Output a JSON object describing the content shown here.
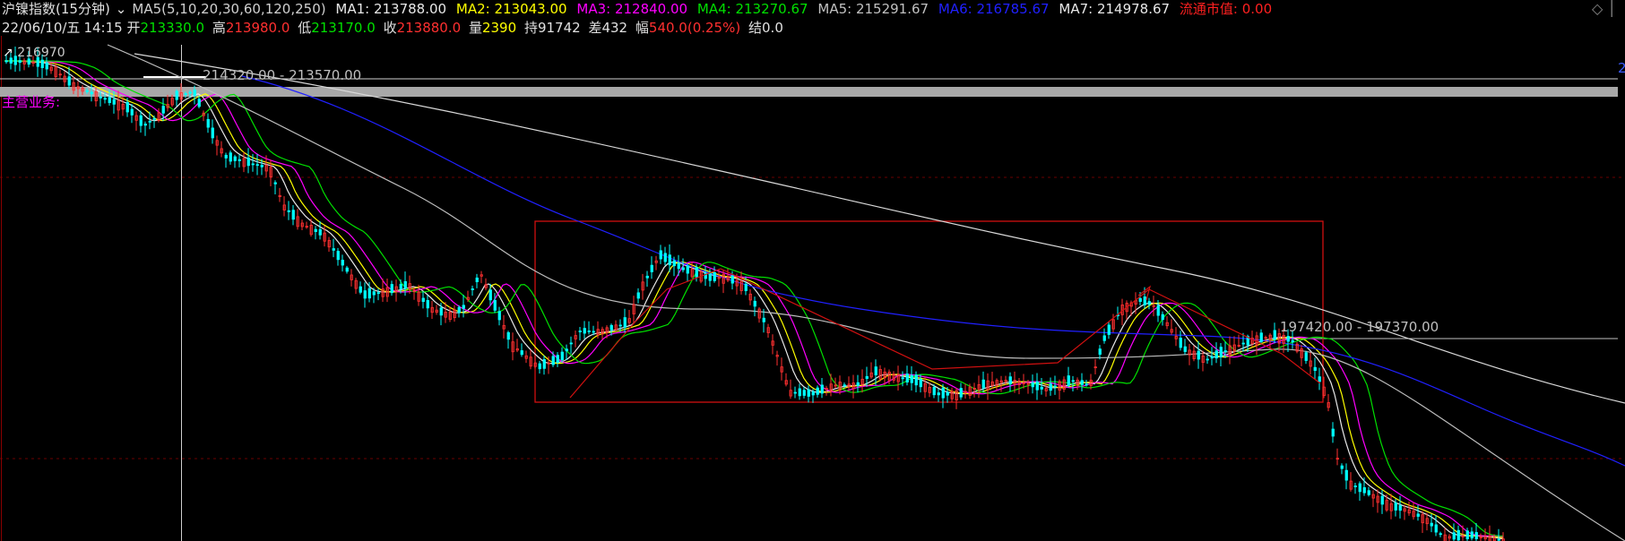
{
  "header": {
    "title": "沪镍指数(15分钟)",
    "ma_params": "MA5(5,10,20,30,60,120,250)",
    "ma": [
      {
        "label": "MA1:",
        "value": "213788.00",
        "color": "#e8e8e8"
      },
      {
        "label": "MA2:",
        "value": "213043.00",
        "color": "#ffff00"
      },
      {
        "label": "MA3:",
        "value": "212840.00",
        "color": "#ff00ff"
      },
      {
        "label": "MA4:",
        "value": "213270.67",
        "color": "#00e000"
      },
      {
        "label": "MA5:",
        "value": "215291.67",
        "color": "#c0c0c0"
      },
      {
        "label": "MA6:",
        "value": "216785.67",
        "color": "#2020ff"
      },
      {
        "label": "MA7:",
        "value": "214978.67",
        "color": "#e8e8e8"
      }
    ],
    "market_value_label": "流通市值:",
    "market_value": "0.00"
  },
  "info": {
    "date": "22/06/10/五",
    "time": "14:15",
    "open_label": "开",
    "open": "213330.0",
    "high_label": "高",
    "high": "213980.0",
    "low_label": "低",
    "low": "213170.0",
    "close_label": "收",
    "close": "213880.0",
    "volume_label": "量",
    "volume": "2390",
    "oi_label": "持",
    "oi": "91742",
    "diff_label": "差",
    "diff": "432",
    "amp_label": "幅",
    "amp": "540.0(0.25%)",
    "settle_label": "结",
    "settle": "0.0"
  },
  "overlay": {
    "price_label": "216970",
    "business_label": "主营业务:",
    "level1": "214320.00 - 213570.00",
    "level2": "197420.00 - 197370.00",
    "corner_icon": "diamond-icon"
  },
  "chart_data": {
    "type": "candlestick",
    "title": "沪镍指数(15分钟)",
    "interval": "15分钟",
    "ma_periods": [
      5,
      10,
      20,
      30,
      60,
      120,
      250
    ],
    "last_bar": {
      "date": "22/06/10",
      "time": "14:15",
      "open": 213330.0,
      "high": 213980.0,
      "low": 213170.0,
      "close": 213880.0,
      "volume": 2390,
      "open_interest": 91742
    },
    "horizontal_levels": [
      {
        "label": "214320.00 - 213570.00",
        "from": 214320.0,
        "to": 213570.0
      },
      {
        "label": "197420.00 - 197370.00",
        "from": 197420.0,
        "to": 197370.0
      }
    ],
    "colors": {
      "up": "#ff3030",
      "down": "#00ffff",
      "box": "#d01010",
      "grid": "#5a0000"
    }
  }
}
